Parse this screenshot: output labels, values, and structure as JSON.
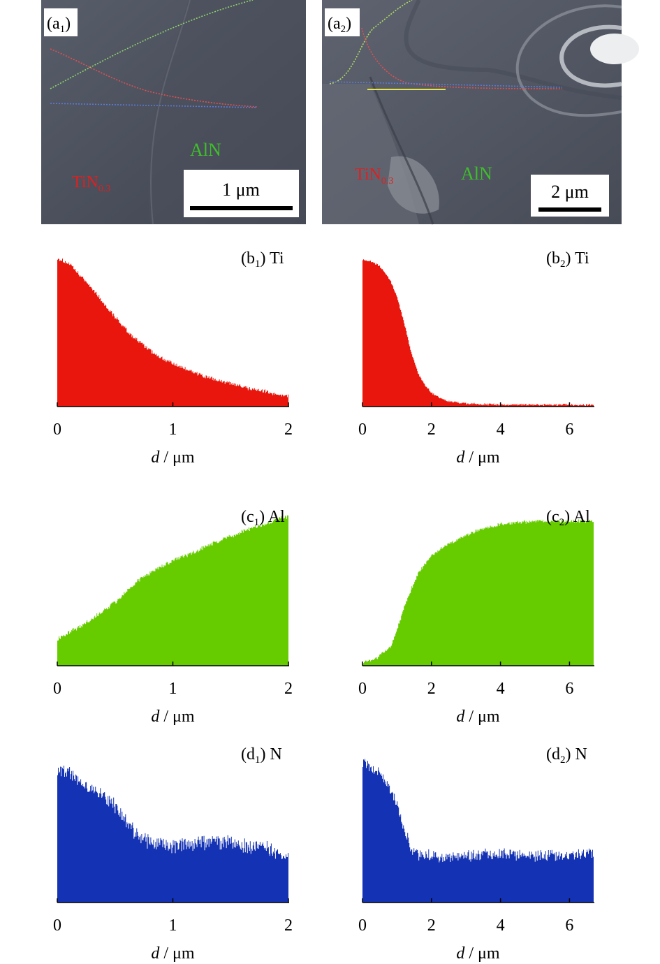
{
  "sem_panels": [
    {
      "label": "a",
      "label_sub": "1",
      "phase_left_main": "TiN",
      "phase_left_sub": "0.3",
      "phase_right": "AlN",
      "scalebar": "1 μm",
      "colors": {
        "background": "#4a4f5c",
        "phase_left": "#e01f1f",
        "phase_right": "#3fbf2a"
      }
    },
    {
      "label": "a",
      "label_sub": "2",
      "phase_left_main": "TiN",
      "phase_left_sub": "0.3",
      "phase_right": "AlN",
      "scalebar": "2 μm",
      "colors": {
        "background": "#505561",
        "phase_left": "#e01f1f",
        "phase_right": "#3fbf2a"
      }
    }
  ],
  "chart_data": [
    {
      "type": "area",
      "id": "b1",
      "label": "b",
      "label_sub": "1",
      "element": "Ti",
      "xlabel_var": "d",
      "xlabel_unit": " / μm",
      "xlim": [
        0,
        2
      ],
      "xticks": [
        "0",
        "1",
        "2"
      ],
      "ylim": [
        0,
        1.0
      ],
      "color": "#e8160c",
      "x": [
        0,
        0.05,
        0.1,
        0.15,
        0.2,
        0.3,
        0.4,
        0.5,
        0.6,
        0.7,
        0.8,
        0.9,
        1.0,
        1.1,
        1.2,
        1.3,
        1.4,
        1.5,
        1.6,
        1.7,
        1.8,
        1.9,
        2.0
      ],
      "y": [
        0.98,
        0.96,
        0.94,
        0.9,
        0.86,
        0.78,
        0.68,
        0.59,
        0.5,
        0.43,
        0.37,
        0.32,
        0.28,
        0.25,
        0.22,
        0.19,
        0.17,
        0.15,
        0.13,
        0.11,
        0.1,
        0.08,
        0.07
      ]
    },
    {
      "type": "area",
      "id": "b2",
      "label": "b",
      "label_sub": "2",
      "element": "Ti",
      "xlabel_var": "d",
      "xlabel_unit": " / μm",
      "xlim": [
        0,
        6.7
      ],
      "xticks": [
        "0",
        "2",
        "4",
        "6"
      ],
      "ylim": [
        0,
        1.0
      ],
      "color": "#e8160c",
      "x": [
        0,
        0.2,
        0.4,
        0.6,
        0.8,
        1.0,
        1.2,
        1.4,
        1.6,
        1.8,
        2.0,
        2.2,
        2.4,
        2.6,
        3.0,
        3.5,
        4.0,
        5.0,
        6.0,
        6.7
      ],
      "y": [
        0.97,
        0.96,
        0.94,
        0.9,
        0.83,
        0.72,
        0.55,
        0.36,
        0.22,
        0.14,
        0.09,
        0.06,
        0.04,
        0.03,
        0.02,
        0.015,
        0.012,
        0.012,
        0.012,
        0.012
      ]
    },
    {
      "type": "area",
      "id": "c1",
      "label": "c",
      "label_sub": "1",
      "element": "Al",
      "xlabel_var": "d",
      "xlabel_unit": " / μm",
      "xlim": [
        0,
        2
      ],
      "xticks": [
        "0",
        "1",
        "2"
      ],
      "ylim": [
        0,
        1.0
      ],
      "color": "#66cc00",
      "x": [
        0,
        0.1,
        0.2,
        0.3,
        0.4,
        0.5,
        0.6,
        0.7,
        0.8,
        0.9,
        1.0,
        1.1,
        1.2,
        1.3,
        1.4,
        1.5,
        1.6,
        1.7,
        1.8,
        1.9,
        2.0
      ],
      "y": [
        0.18,
        0.22,
        0.26,
        0.31,
        0.36,
        0.42,
        0.49,
        0.56,
        0.61,
        0.65,
        0.69,
        0.72,
        0.75,
        0.79,
        0.82,
        0.85,
        0.88,
        0.91,
        0.93,
        0.96,
        0.98
      ]
    },
    {
      "type": "area",
      "id": "c2",
      "label": "c",
      "label_sub": "2",
      "element": "Al",
      "xlabel_var": "d",
      "xlabel_unit": " / μm",
      "xlim": [
        0,
        6.7
      ],
      "xticks": [
        "0",
        "2",
        "4",
        "6"
      ],
      "ylim": [
        0,
        1.0
      ],
      "color": "#66cc00",
      "x": [
        0,
        0.4,
        0.8,
        1.0,
        1.2,
        1.4,
        1.6,
        1.8,
        2.0,
        2.2,
        2.5,
        3.0,
        3.5,
        4.0,
        4.5,
        5.0,
        5.5,
        6.0,
        6.7
      ],
      "y": [
        0.02,
        0.05,
        0.12,
        0.24,
        0.38,
        0.5,
        0.6,
        0.67,
        0.72,
        0.76,
        0.8,
        0.86,
        0.9,
        0.93,
        0.94,
        0.95,
        0.95,
        0.95,
        0.95
      ]
    },
    {
      "type": "area",
      "id": "d1",
      "label": "d",
      "label_sub": "1",
      "element": "N",
      "xlabel_var": "d",
      "xlabel_unit": " / μm",
      "xlim": [
        0,
        2
      ],
      "xticks": [
        "0",
        "1",
        "2"
      ],
      "ylim": [
        0,
        1.0
      ],
      "color": "#1432b4",
      "x": [
        0,
        0.1,
        0.2,
        0.3,
        0.4,
        0.5,
        0.6,
        0.7,
        0.8,
        0.9,
        1.0,
        1.2,
        1.4,
        1.6,
        1.8,
        2.0
      ],
      "y": [
        0.88,
        0.86,
        0.8,
        0.74,
        0.7,
        0.63,
        0.52,
        0.44,
        0.4,
        0.38,
        0.38,
        0.39,
        0.4,
        0.38,
        0.36,
        0.3
      ]
    },
    {
      "type": "area",
      "id": "d2",
      "label": "d",
      "label_sub": "2",
      "element": "N",
      "xlabel_var": "d",
      "xlabel_unit": " / μm",
      "xlim": [
        0,
        6.7
      ],
      "xticks": [
        "0",
        "2",
        "4",
        "6"
      ],
      "ylim": [
        0,
        1.0
      ],
      "color": "#1432b4",
      "x": [
        0,
        0.2,
        0.4,
        0.6,
        0.8,
        1.0,
        1.2,
        1.4,
        1.6,
        2.0,
        2.5,
        3.0,
        4.0,
        5.0,
        6.0,
        6.7
      ],
      "y": [
        0.92,
        0.9,
        0.86,
        0.82,
        0.76,
        0.64,
        0.48,
        0.36,
        0.32,
        0.31,
        0.3,
        0.31,
        0.32,
        0.31,
        0.31,
        0.33
      ]
    }
  ]
}
